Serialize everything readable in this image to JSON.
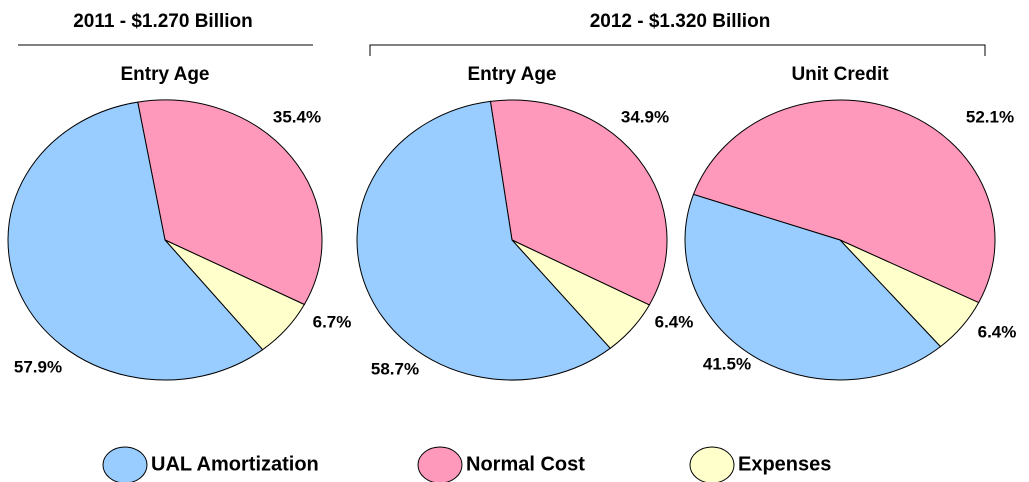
{
  "groups": [
    {
      "title": "2011 - $1.270 Billion"
    },
    {
      "title": "2012 - $1.320 Billion"
    }
  ],
  "chart_data": [
    {
      "type": "pie",
      "title": "Entry Age",
      "categories": [
        "Normal Cost",
        "Expenses",
        "UAL Amortization"
      ],
      "values": [
        35.4,
        6.7,
        57.9
      ],
      "value_labels": [
        "35.4%",
        "6.7%",
        "57.9%"
      ],
      "colors": [
        "#ff99bb",
        "#ffffcc",
        "#99ccff"
      ]
    },
    {
      "type": "pie",
      "title": "Entry Age",
      "categories": [
        "Normal Cost",
        "Expenses",
        "UAL Amortization"
      ],
      "values": [
        34.9,
        6.4,
        58.7
      ],
      "value_labels": [
        "34.9%",
        "6.4%",
        "58.7%"
      ],
      "colors": [
        "#ff99bb",
        "#ffffcc",
        "#99ccff"
      ]
    },
    {
      "type": "pie",
      "title": "Unit Credit",
      "categories": [
        "Normal Cost",
        "Expenses",
        "UAL Amortization"
      ],
      "values": [
        52.1,
        6.4,
        41.5
      ],
      "value_labels": [
        "52.1%",
        "6.4%",
        "41.5%"
      ],
      "colors": [
        "#ff99bb",
        "#ffffcc",
        "#99ccff"
      ]
    }
  ]
}
